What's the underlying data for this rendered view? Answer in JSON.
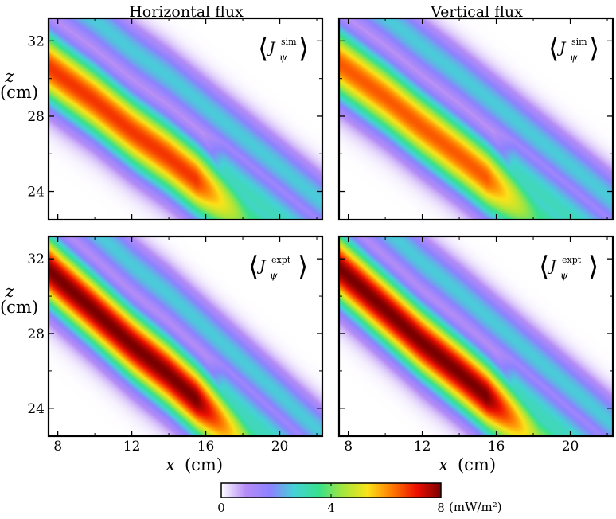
{
  "chart_data": [
    {
      "type": "heatmap",
      "panel": "top-left",
      "title": "Horizontal flux",
      "label": "⟨J_ψ^sim⟩",
      "label_base": "J",
      "label_sub": "ψ",
      "label_sup": "sim",
      "xlim": [
        7.5,
        22.3
      ],
      "ylim": [
        22.5,
        33.2
      ],
      "xticks": [
        "8",
        "12",
        "16",
        "20"
      ],
      "yticks": [
        "24",
        "28",
        "32"
      ],
      "ylabel_symbol": "z",
      "ylabel_unit": "(cm)",
      "ridge": [
        [
          7.5,
          30.6
        ],
        [
          10,
          28.8
        ],
        [
          12,
          27.2
        ],
        [
          14,
          25.8
        ],
        [
          16,
          24.2
        ]
      ],
      "peak_value": 6.8
    },
    {
      "type": "heatmap",
      "panel": "top-right",
      "title": "Vertical flux",
      "label": "⟨J_ψ^sim⟩",
      "label_base": "J",
      "label_sub": "ψ",
      "label_sup": "sim",
      "xlim": [
        7.5,
        22.3
      ],
      "ylim": [
        22.5,
        33.2
      ],
      "xticks": [
        "8",
        "12",
        "16",
        "20"
      ],
      "yticks": [
        "24",
        "28",
        "32"
      ],
      "ridge": [
        [
          7.5,
          30.8
        ],
        [
          10,
          29.0
        ],
        [
          12,
          27.4
        ],
        [
          14,
          25.9
        ],
        [
          16,
          24.3
        ]
      ],
      "peak_value": 6.5
    },
    {
      "type": "heatmap",
      "panel": "bottom-left",
      "label": "⟨J_ψ^expt⟩",
      "label_base": "J",
      "label_sub": "ψ",
      "label_sup": "expt",
      "xlim": [
        7.5,
        22.3
      ],
      "ylim": [
        22.5,
        33.2
      ],
      "xticks": [
        "8",
        "12",
        "16",
        "20"
      ],
      "yticks": [
        "24",
        "28",
        "32"
      ],
      "xlabel_symbol": "x",
      "xlabel_unit": "(cm)",
      "ylabel_symbol": "z",
      "ylabel_unit": "(cm)",
      "ridge": [
        [
          7.5,
          31.4
        ],
        [
          10,
          29.2
        ],
        [
          12,
          27.4
        ],
        [
          14,
          25.8
        ],
        [
          16,
          24.0
        ]
      ],
      "peak_value": 8.0
    },
    {
      "type": "heatmap",
      "panel": "bottom-right",
      "label": "⟨J_ψ^expt⟩",
      "label_base": "J",
      "label_sub": "ψ",
      "label_sup": "expt",
      "xlim": [
        7.5,
        22.3
      ],
      "ylim": [
        22.5,
        33.2
      ],
      "xticks": [
        "8",
        "12",
        "16",
        "20"
      ],
      "yticks": [
        "24",
        "28",
        "32"
      ],
      "xlabel_symbol": "x",
      "xlabel_unit": "(cm)",
      "ridge": [
        [
          7.5,
          31.5
        ],
        [
          10,
          29.3
        ],
        [
          12,
          27.5
        ],
        [
          14,
          25.9
        ],
        [
          16,
          24.2
        ]
      ],
      "peak_value": 8.0
    }
  ],
  "colorbar": {
    "min": 0,
    "max": 8,
    "ticks": [
      "0",
      "4",
      "8"
    ],
    "unit": "(mW/m²)",
    "colors": [
      "#ffffff",
      "#b58cf6",
      "#8c82ff",
      "#45d2d6",
      "#38e18c",
      "#a6e63b",
      "#fbe318",
      "#ff7a00",
      "#ee1000",
      "#7a0000"
    ]
  }
}
